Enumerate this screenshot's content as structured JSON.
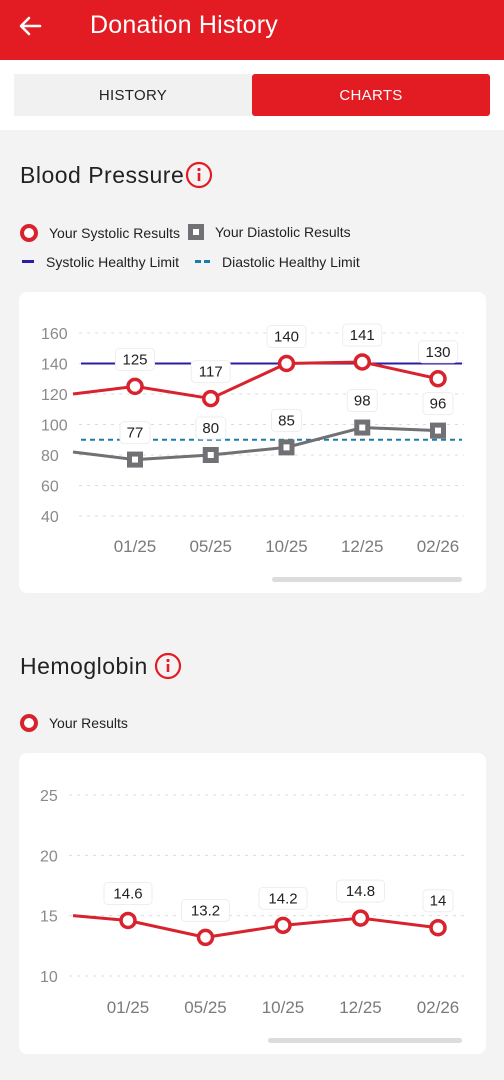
{
  "header": {
    "title": "Donation History"
  },
  "tabs": [
    {
      "label": "HISTORY",
      "selected": false
    },
    {
      "label": "CHARTS",
      "selected": true
    }
  ],
  "colors": {
    "brand": "#e31b23",
    "systolic": "#d8232e",
    "diastolic": "#707075",
    "systolic_limit": "#2b1da6",
    "diastolic_limit": "#1b7bab"
  },
  "blood_pressure": {
    "title": "Blood Pressure",
    "legend": {
      "systolic": "Your Systolic Results",
      "diastolic": "Your Diastolic Results",
      "systolic_limit": "Systolic Healthy Limit",
      "diastolic_limit": "Diastolic Healthy Limit"
    }
  },
  "hemoglobin": {
    "title": "Hemoglobin",
    "legend": {
      "results": "Your Results"
    }
  },
  "chart_data": [
    {
      "type": "line",
      "categories": [
        "01/25",
        "05/25",
        "10/25",
        "12/25",
        "02/26"
      ],
      "series": [
        {
          "name": "Your Systolic Results",
          "values": [
            125,
            117,
            140,
            141,
            130
          ]
        },
        {
          "name": "Your Diastolic Results",
          "values": [
            77,
            80,
            85,
            98,
            96
          ]
        }
      ],
      "reference_lines": [
        {
          "name": "Systolic Healthy Limit",
          "value": 140,
          "style": "solid"
        },
        {
          "name": "Diastolic Healthy Limit",
          "value": 90,
          "style": "dashed"
        }
      ],
      "yticks": [
        40,
        60,
        80,
        100,
        120,
        140,
        160
      ],
      "ylim": [
        40,
        160
      ],
      "grid": true
    },
    {
      "type": "line",
      "categories": [
        "01/25",
        "05/25",
        "10/25",
        "12/25",
        "02/26"
      ],
      "series": [
        {
          "name": "Your Results",
          "values": [
            14.6,
            13.2,
            14.2,
            14.8,
            14
          ]
        }
      ],
      "yticks": [
        10,
        15,
        20,
        25
      ],
      "ylim": [
        10,
        25
      ],
      "grid": true
    }
  ]
}
